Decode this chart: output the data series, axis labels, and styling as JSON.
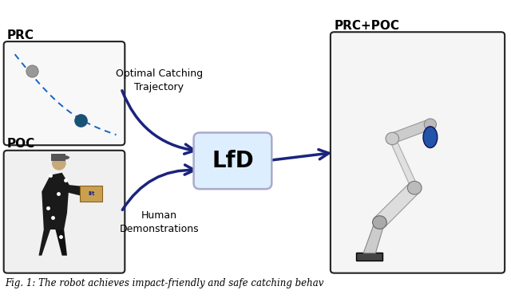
{
  "background_color": "#ffffff",
  "caption": "Fig. 1: The robot achieves impact-friendly and safe catching behav",
  "caption_fontsize": 8.5,
  "prc_label": "PRC",
  "poc_label": "POC",
  "prc_poc_label": "PRC+POC",
  "lfd_label": "LfD",
  "arrow_label_top": "Optimal Catching\nTrajectory",
  "arrow_label_bottom": "Human\nDemonstrations",
  "arrow_color": "#1a237e",
  "box_edge_color": "#222222",
  "lfd_box_fill": "#ddeeff",
  "lfd_box_edge": "#888899",
  "label_fontsize": 11,
  "lfd_fontsize": 20,
  "annotation_fontsize": 9,
  "traj_color": "#1565c0",
  "gray_dot_color": "#999999",
  "blue_dot_color": "#1a5276",
  "fig_width": 6.4,
  "fig_height": 3.74,
  "xlim": [
    0,
    10
  ],
  "ylim": [
    0,
    6.2
  ]
}
